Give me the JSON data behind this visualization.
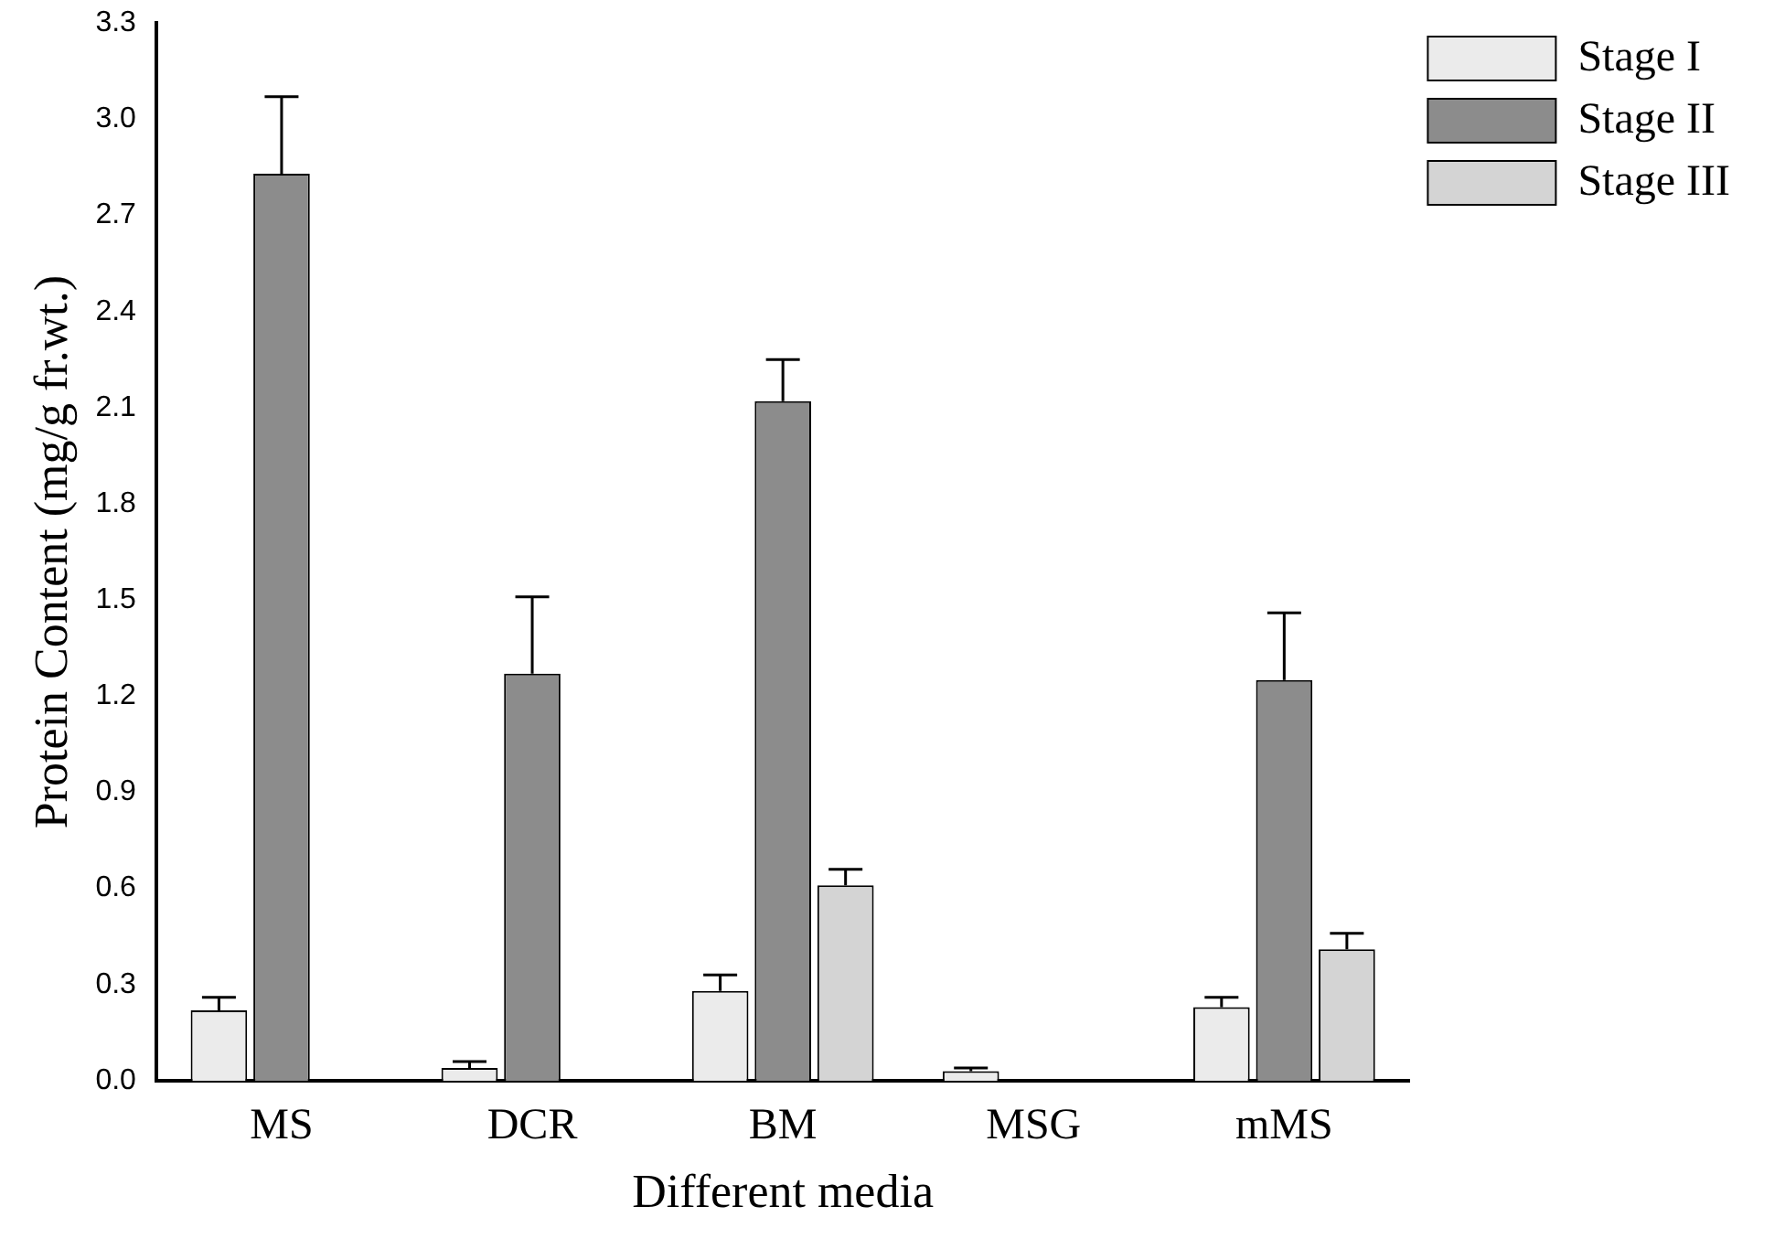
{
  "chart_data": {
    "type": "bar",
    "xlabel": "Different media",
    "ylabel": "Protein Content (mg/g fr.wt.)",
    "categories": [
      "MS",
      "DCR",
      "BM",
      "MSG",
      "mMS"
    ],
    "series": [
      {
        "name": "Stage I",
        "color": "#ebebeb",
        "values": [
          0.22,
          0.04,
          0.28,
          0.03,
          0.23
        ],
        "errors": [
          [
            0.22,
            0.26
          ],
          [
            0.04,
            0.06
          ],
          [
            0.28,
            0.33
          ],
          [
            0.03,
            0.04
          ],
          [
            0.23,
            0.26
          ]
        ]
      },
      {
        "name": "Stage II",
        "color": "#8c8c8c",
        "values": [
          2.83,
          1.27,
          2.12,
          null,
          1.25
        ],
        "errors": [
          [
            2.83,
            3.07
          ],
          [
            1.27,
            1.51
          ],
          [
            2.12,
            2.25
          ],
          null,
          [
            1.25,
            1.46
          ]
        ]
      },
      {
        "name": "Stage III",
        "color": "#d4d4d4",
        "values": [
          null,
          null,
          0.61,
          null,
          0.41
        ],
        "errors": [
          null,
          null,
          [
            0.61,
            0.66
          ],
          null,
          [
            0.41,
            0.46
          ]
        ]
      }
    ],
    "ylim": [
      0,
      3.3
    ],
    "yticks": [
      {
        "value": 0,
        "label": "0.0"
      },
      0.3,
      0.6,
      0.9,
      1.2,
      1.5,
      1.8,
      2.1,
      2.4,
      2.7,
      {
        "value": 3,
        "label": "3.0"
      },
      3.3
    ],
    "grid": false,
    "legend": "top right"
  }
}
